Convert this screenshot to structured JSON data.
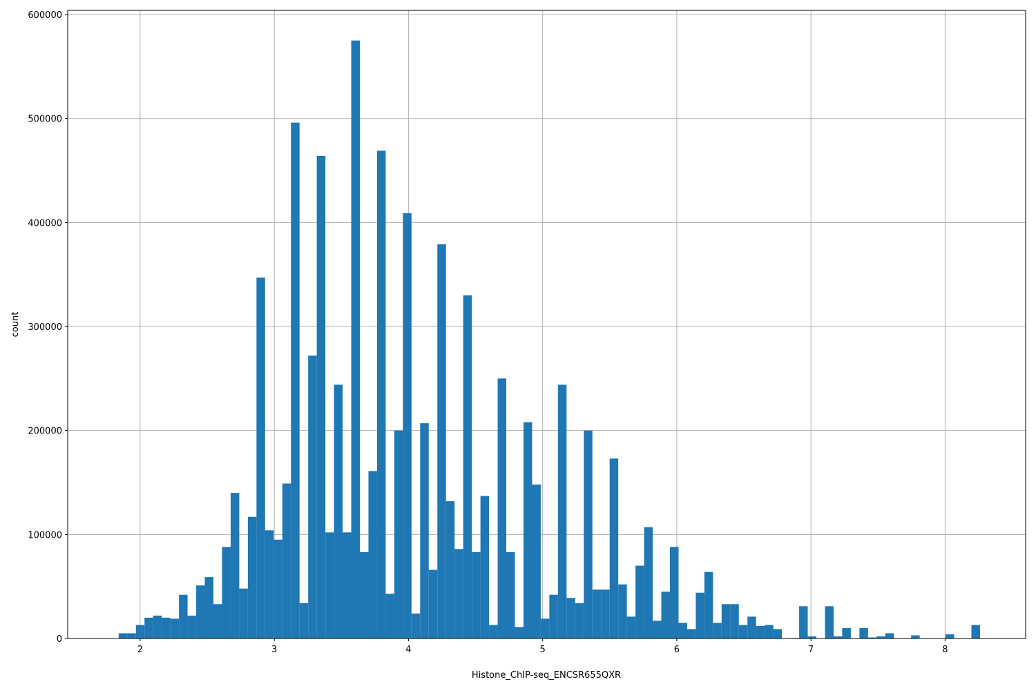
{
  "chart_data": {
    "type": "histogram",
    "xlabel": "Histone_ChIP-seq_ENCSR655QXR",
    "ylabel": "count",
    "color": "#1f77b4",
    "grid": true,
    "bins": [
      1.84,
      1.9042,
      1.9684,
      2.0326,
      2.0968,
      2.161,
      2.2252,
      2.2894,
      2.3536,
      2.4178,
      2.482,
      2.5462,
      2.6104,
      2.6746,
      2.7388,
      2.803,
      2.8672,
      2.9314,
      2.9956,
      3.0598,
      3.124,
      3.1882,
      3.2524,
      3.3166,
      3.3808,
      3.445,
      3.5092,
      3.5734,
      3.6376,
      3.7018,
      3.766,
      3.8302,
      3.8944,
      3.9586,
      4.0228,
      4.087,
      4.1512,
      4.2154,
      4.2796,
      4.3438,
      4.408,
      4.4722,
      4.5364,
      4.6006,
      4.6648,
      4.729,
      4.7932,
      4.8574,
      4.9216,
      4.9858,
      5.05,
      5.1142,
      5.1784,
      5.2426,
      5.3068,
      5.371,
      5.4352,
      5.4994,
      5.5636,
      5.6278,
      5.692,
      5.7562,
      5.8204,
      5.8846,
      5.9488,
      6.013,
      6.0772,
      6.1414,
      6.2056,
      6.2698,
      6.334,
      6.3982,
      6.4624,
      6.5266,
      6.5908,
      6.655,
      6.7192,
      6.7834,
      6.8476,
      6.9118,
      6.976,
      7.0402,
      7.1044,
      7.1686,
      7.2328,
      7.297,
      7.3612,
      7.4254,
      7.4896,
      7.5538,
      7.618,
      7.6822,
      7.7464,
      7.8106,
      7.8748,
      7.939,
      8.0032,
      8.0674,
      8.1316,
      8.1958,
      8.26
    ],
    "values": [
      5000,
      5000,
      13000,
      20000,
      22000,
      20000,
      19000,
      42000,
      22000,
      51000,
      59000,
      33000,
      88000,
      140000,
      48000,
      117000,
      347000,
      104000,
      95000,
      149000,
      496000,
      34000,
      272000,
      464000,
      102000,
      244000,
      102000,
      575000,
      83000,
      161000,
      469000,
      43000,
      200000,
      409000,
      24000,
      207000,
      66000,
      379000,
      132000,
      86000,
      330000,
      83000,
      137000,
      13000,
      250000,
      83000,
      11000,
      208000,
      148000,
      19000,
      42000,
      244000,
      39000,
      34000,
      200000,
      47000,
      47000,
      173000,
      52000,
      21000,
      70000,
      107000,
      17000,
      45000,
      88000,
      15000,
      9000,
      44000,
      64000,
      15000,
      33000,
      33000,
      13000,
      21000,
      12000,
      13000,
      9000,
      0,
      500,
      31000,
      2000,
      0,
      31000,
      2000,
      10000,
      0,
      10000,
      1000,
      2000,
      5000,
      0,
      0,
      3000,
      0,
      0,
      0,
      4000,
      0,
      0,
      13000
    ],
    "xlim": [
      1.46,
      8.6
    ],
    "xticks": [
      2,
      3,
      4,
      5,
      6,
      7,
      8
    ],
    "ylim": [
      0,
      604000
    ],
    "yticks": [
      0,
      100000,
      200000,
      300000,
      400000,
      500000,
      600000
    ]
  }
}
